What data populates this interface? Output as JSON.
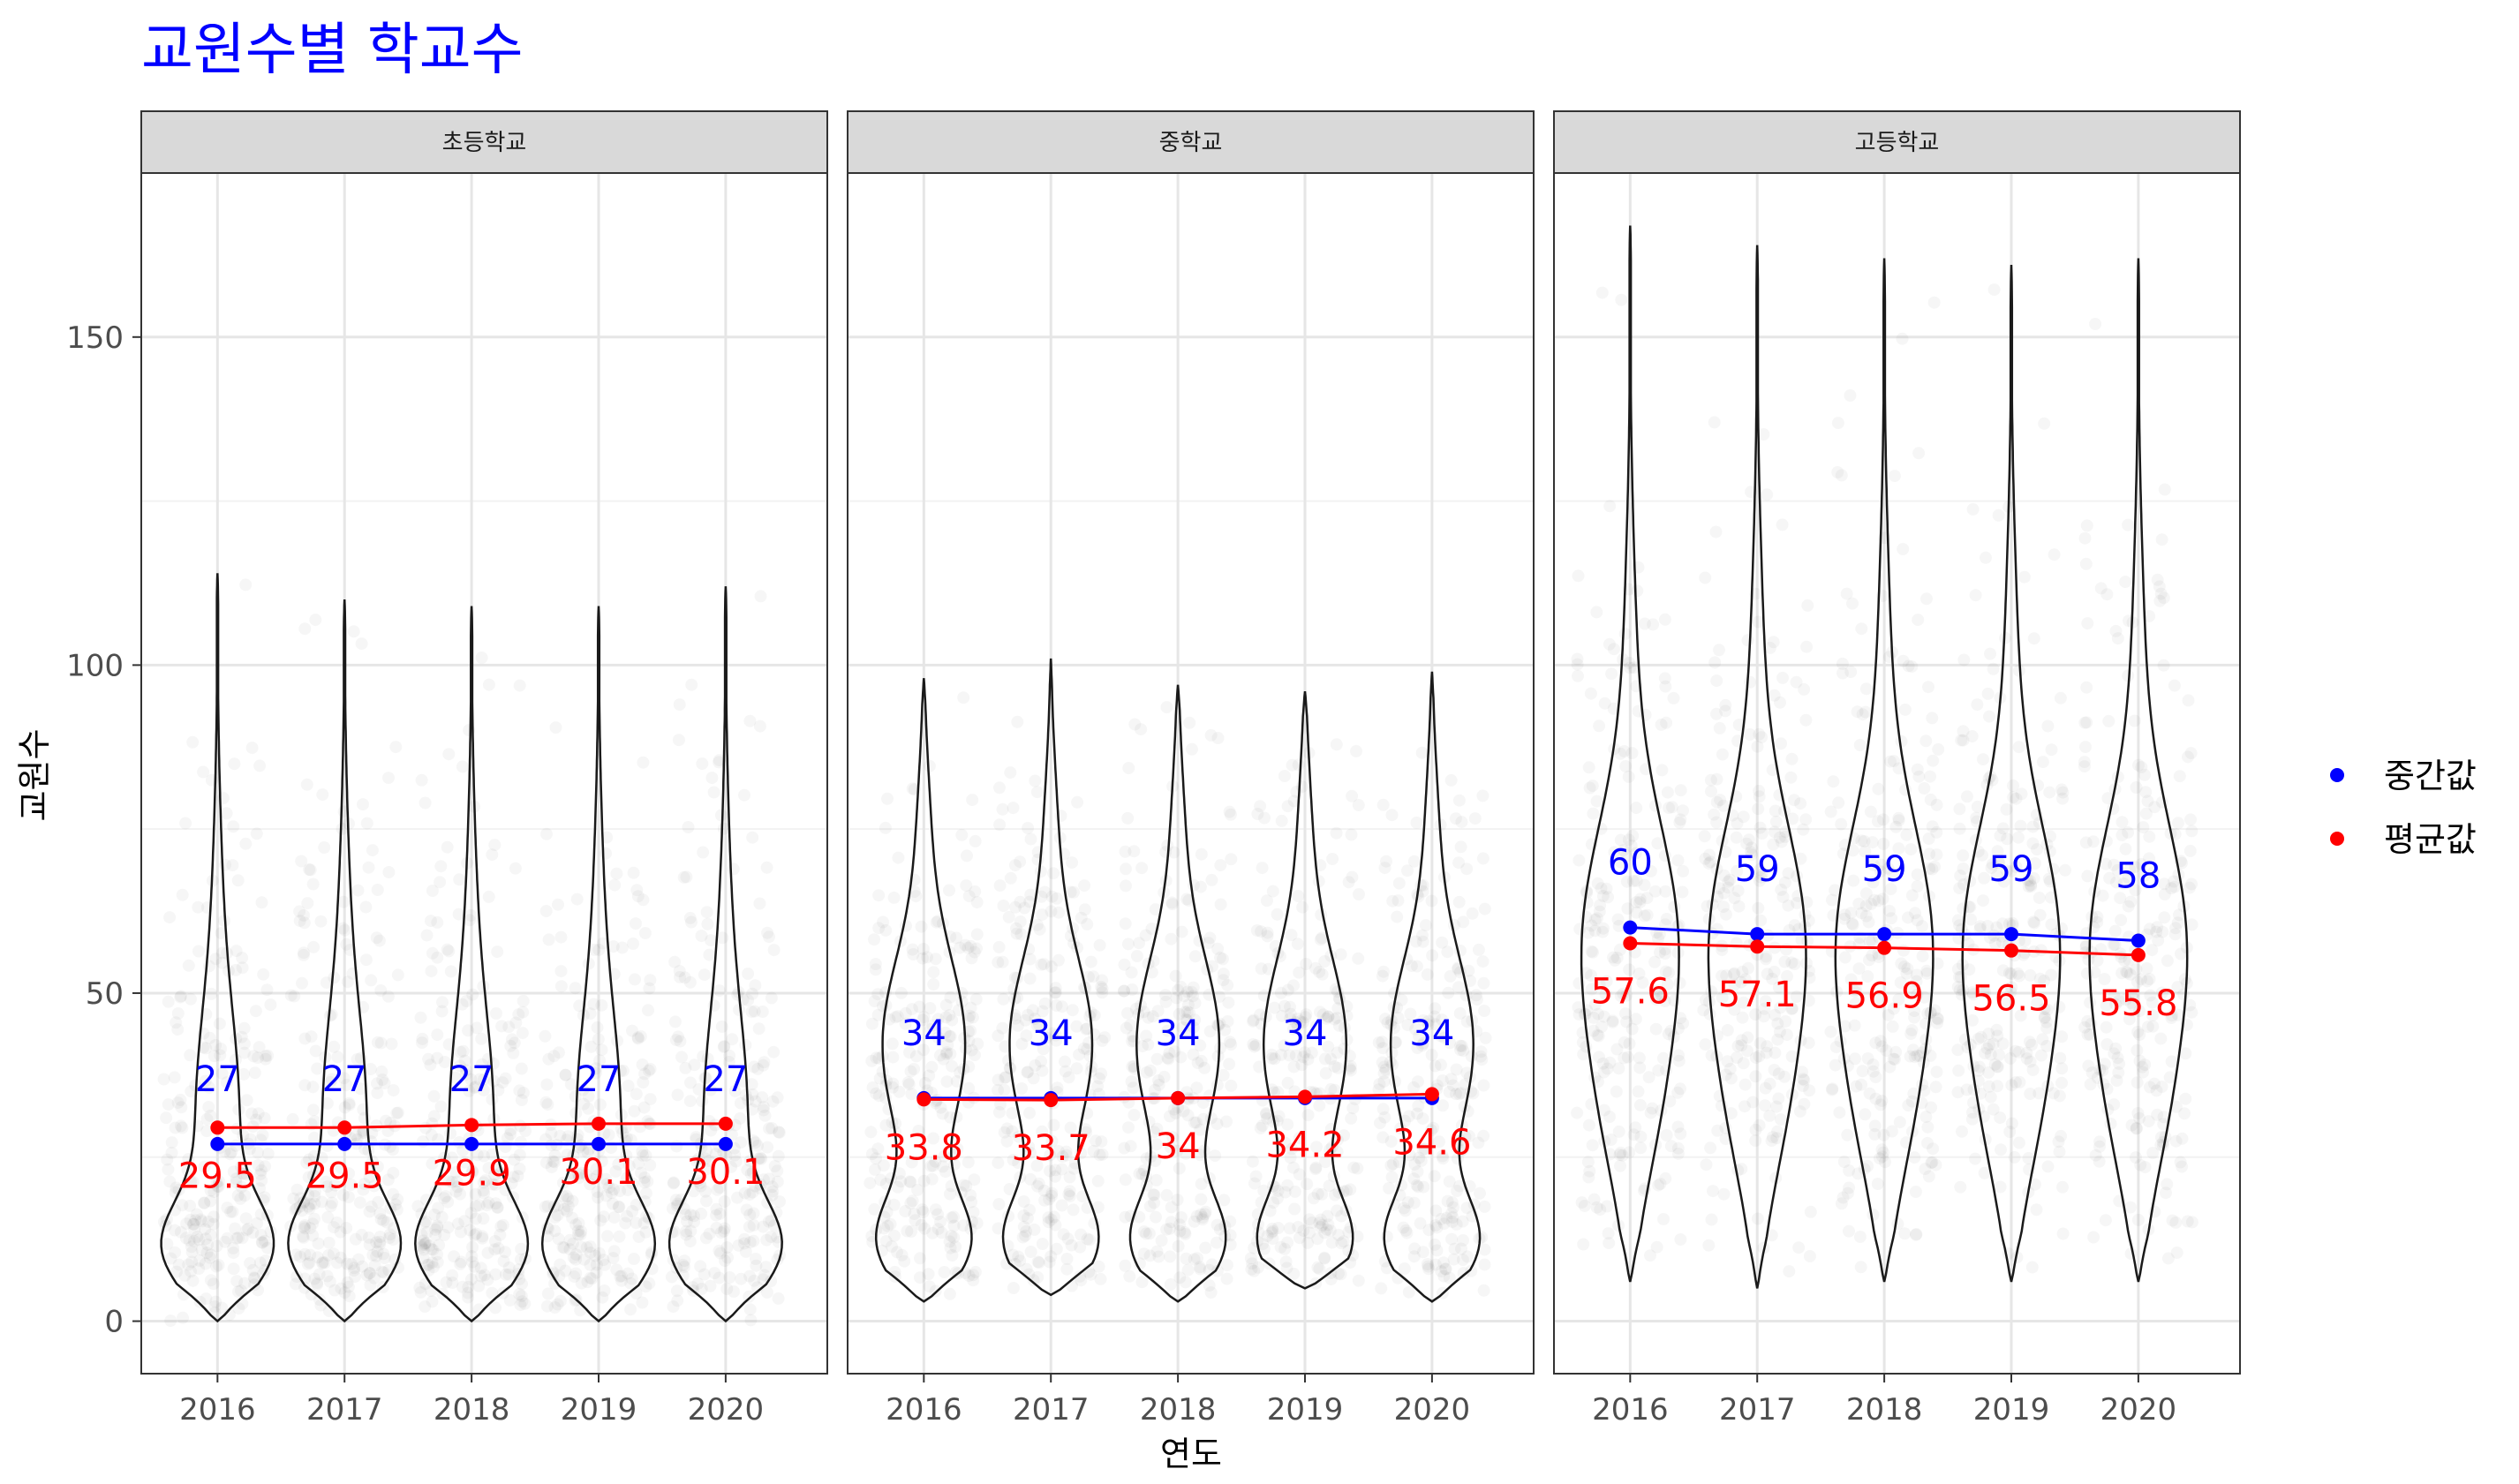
{
  "chart_data": {
    "type": "violin",
    "title": "교원수별 학교수",
    "xlabel": "연도",
    "ylabel": "교원수",
    "ylim": [
      -8,
      175
    ],
    "y_ticks": [
      0,
      50,
      100,
      150
    ],
    "categories": [
      "2016",
      "2017",
      "2018",
      "2019",
      "2020"
    ],
    "grid": true,
    "legend_position": "right",
    "legend": [
      {
        "name": "중간값",
        "color": "#0000ff"
      },
      {
        "name": "평균값",
        "color": "#ff0000"
      }
    ],
    "panels": [
      {
        "name": "초등학교",
        "median": [
          27,
          27,
          27,
          27,
          27
        ],
        "mean": [
          29.5,
          29.5,
          29.9,
          30.1,
          30.1
        ],
        "median_labels": [
          "27",
          "27",
          "27",
          "27",
          "27"
        ],
        "mean_labels": [
          "29.5",
          "29.5",
          "29.9",
          "30.1",
          "30.1"
        ],
        "violin_min": [
          0,
          0,
          0,
          0,
          0
        ],
        "violin_max": [
          114,
          110,
          109,
          109,
          112
        ]
      },
      {
        "name": "중학교",
        "median": [
          34,
          34,
          34,
          34,
          34
        ],
        "mean": [
          33.8,
          33.7,
          34,
          34.2,
          34.6
        ],
        "median_labels": [
          "34",
          "34",
          "34",
          "34",
          "34"
        ],
        "mean_labels": [
          "33.8",
          "33.7",
          "34",
          "34.2",
          "34.6"
        ],
        "violin_min": [
          3,
          4,
          3,
          5,
          3
        ],
        "violin_max": [
          98,
          101,
          97,
          96,
          99
        ]
      },
      {
        "name": "고등학교",
        "median": [
          60,
          59,
          59,
          59,
          58
        ],
        "mean": [
          57.6,
          57.1,
          56.9,
          56.5,
          55.8
        ],
        "median_labels": [
          "60",
          "59",
          "59",
          "59",
          "58"
        ],
        "mean_labels": [
          "57.6",
          "57.1",
          "56.9",
          "56.5",
          "55.8"
        ],
        "violin_min": [
          6,
          5,
          6,
          6,
          6
        ],
        "violin_max": [
          167,
          164,
          162,
          161,
          162
        ]
      }
    ]
  }
}
